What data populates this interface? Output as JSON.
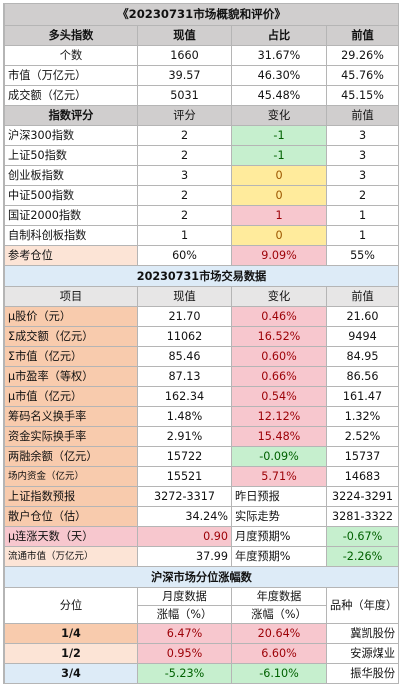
{
  "title": "《20230731市场概貌和评价》",
  "section1": {
    "headers": [
      "多头指数",
      "现值",
      "占比",
      "前值"
    ],
    "rows": [
      {
        "label": "个数",
        "cur": "1660",
        "ratio": "31.67%",
        "prev": "29.26%"
      },
      {
        "label": "市值（万亿元）",
        "cur": "39.57",
        "ratio": "46.30%",
        "prev": "45.76%"
      },
      {
        "label": "成交额（亿元）",
        "cur": "5031",
        "ratio": "45.48%",
        "prev": "45.15%"
      }
    ]
  },
  "section2": {
    "headers": [
      "指数评分",
      "评分",
      "变化",
      "前值"
    ],
    "rows": [
      {
        "label": "沪深300指数",
        "score": "2",
        "change": "-1",
        "prev": "3",
        "tone": "green"
      },
      {
        "label": "上证50指数",
        "score": "2",
        "change": "-1",
        "prev": "3",
        "tone": "green"
      },
      {
        "label": "创业板指数",
        "score": "3",
        "change": "0",
        "prev": "3",
        "tone": "yellow"
      },
      {
        "label": "中证500指数",
        "score": "2",
        "change": "0",
        "prev": "2",
        "tone": "yellow"
      },
      {
        "label": "国证2000指数",
        "score": "2",
        "change": "1",
        "prev": "1",
        "tone": "pink"
      },
      {
        "label": "自制科创板指数",
        "score": "1",
        "change": "0",
        "prev": "1",
        "tone": "yellow"
      }
    ],
    "position": {
      "label": "参考仓位",
      "cur": "60%",
      "change": "9.09%",
      "prev": "55%"
    }
  },
  "section3": {
    "title": "20230731市场交易数据",
    "headers": [
      "项目",
      "现值",
      "变化",
      "前值"
    ],
    "rows": [
      {
        "label": "μ股价（元）",
        "cur": "21.70",
        "change": "0.46%",
        "prev": "21.60",
        "tone": "pink"
      },
      {
        "label": "Σ成交额（亿元）",
        "cur": "11062",
        "change": "16.52%",
        "prev": "9494",
        "tone": "pink"
      },
      {
        "label": "Σ市值（亿元）",
        "cur": "85.46",
        "change": "0.60%",
        "prev": "84.95",
        "tone": "pink"
      },
      {
        "label": "μ市盈率（等权）",
        "cur": "87.13",
        "change": "0.66%",
        "prev": "86.56",
        "tone": "pink"
      },
      {
        "label": "μ市值（亿元）",
        "cur": "162.34",
        "change": "0.54%",
        "prev": "161.47",
        "tone": "pink"
      },
      {
        "label": "筹码名义换手率",
        "cur": "1.48%",
        "change": "12.12%",
        "prev": "1.32%",
        "tone": "pink"
      },
      {
        "label": "资金实际换手率",
        "cur": "2.91%",
        "change": "15.48%",
        "prev": "2.52%",
        "tone": "pink"
      },
      {
        "label": "两融余额（亿元）",
        "cur": "15722",
        "change": "-0.09%",
        "prev": "15737",
        "tone": "green"
      },
      {
        "label": "场内资金（亿元）",
        "cur": "15521",
        "change": "5.71%",
        "prev": "14683",
        "tone": "pink",
        "small": true
      }
    ],
    "forecast": {
      "label": "上证指数预报",
      "value": "3272-3317",
      "mid_label": "昨日预报",
      "prev": "3224-3291"
    },
    "retail": {
      "label": "散户仓位（估）",
      "value": "34.24%",
      "mid_label": "实际走势",
      "prev": "3281-3322"
    },
    "streak": {
      "label": "μ连涨天数（天）",
      "value": "0.90",
      "mid_label": "月度预期%",
      "prev": "-0.67%"
    },
    "float_cap": {
      "label": "流通市值（万亿元）",
      "value": "37.99",
      "mid_label": "年度预期%",
      "prev": "-2.26%"
    }
  },
  "section4": {
    "title": "沪深市场分位涨幅数",
    "col_quantile": "分位",
    "col_month": "月度数据",
    "col_year": "年度数据",
    "col_sample": "品种（年度）",
    "sub_month": "涨幅（%）",
    "sub_year": "涨幅（%）",
    "rows": [
      {
        "q": "1/4",
        "month": "6.47%",
        "year": "20.64%",
        "sample": "冀凯股份",
        "mtone": "pink",
        "ytone": "pink"
      },
      {
        "q": "1/2",
        "month": "0.95%",
        "year": "6.60%",
        "sample": "安源煤业",
        "mtone": "pink",
        "ytone": "pink"
      },
      {
        "q": "3/4",
        "month": "-5.23%",
        "year": "-6.10%",
        "sample": "振华股份",
        "mtone": "green",
        "ytone": "green"
      }
    ]
  }
}
